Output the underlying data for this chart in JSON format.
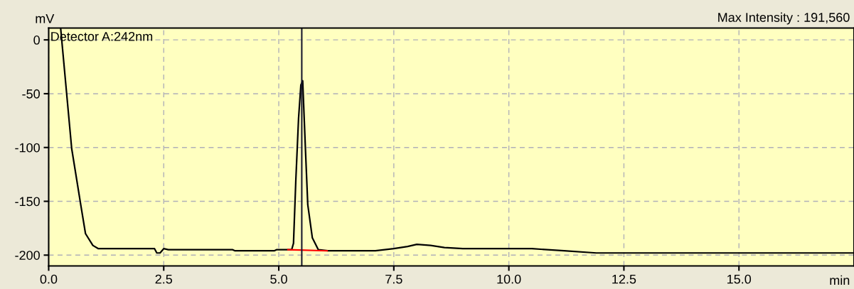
{
  "chart_data": {
    "type": "line",
    "title": "Max Intensity : 191,560",
    "ylabel": "mV",
    "xlabel": "min",
    "annotations": [
      "Detector A:242nm"
    ],
    "xlim": [
      0,
      17.5
    ],
    "ylim": [
      -210,
      11
    ],
    "xticks": [
      {
        "value": 0,
        "label": "0.0"
      },
      {
        "value": 2.5,
        "label": "2.5"
      },
      {
        "value": 5,
        "label": "5.0"
      },
      {
        "value": 7.5,
        "label": "7.5"
      },
      {
        "value": 10,
        "label": "10.0"
      },
      {
        "value": 12.5,
        "label": "12.5"
      },
      {
        "value": 15,
        "label": "15.0"
      }
    ],
    "yticks": [
      0,
      -50,
      -100,
      -150,
      -200
    ],
    "grid": true,
    "legend": false,
    "ref_lines": [
      {
        "axis": "x",
        "value": 5.5,
        "color": "#1a1a2e"
      }
    ],
    "series": [
      {
        "color": "#000000",
        "x": [
          0.26,
          0.5,
          0.7,
          0.8,
          0.96,
          1.08,
          2.3,
          2.35,
          2.42,
          2.5,
          2.6,
          4.0,
          4.05,
          4.9,
          4.95,
          5.28,
          5.32,
          5.37,
          5.43,
          5.48,
          5.52,
          5.58,
          5.63,
          5.73,
          5.86,
          6.07,
          7.1,
          7.5,
          7.8,
          8.0,
          8.3,
          8.6,
          9.0,
          10.5,
          11.2,
          11.9,
          17.5
        ],
        "values": [
          11,
          -101,
          -154,
          -180,
          -191,
          -194,
          -194,
          -198,
          -198,
          -194,
          -195,
          -195,
          -196,
          -196,
          -195,
          -195,
          -189,
          -131,
          -73,
          -42,
          -38,
          -102,
          -153,
          -184,
          -195,
          -196,
          -196,
          -194,
          -192,
          -190,
          -191,
          -193,
          -194,
          -194,
          -196,
          -198,
          -198
        ]
      },
      {
        "color": "#ff0000",
        "x": [
          5.2,
          6.05
        ],
        "values": [
          -195,
          -196
        ]
      }
    ]
  }
}
